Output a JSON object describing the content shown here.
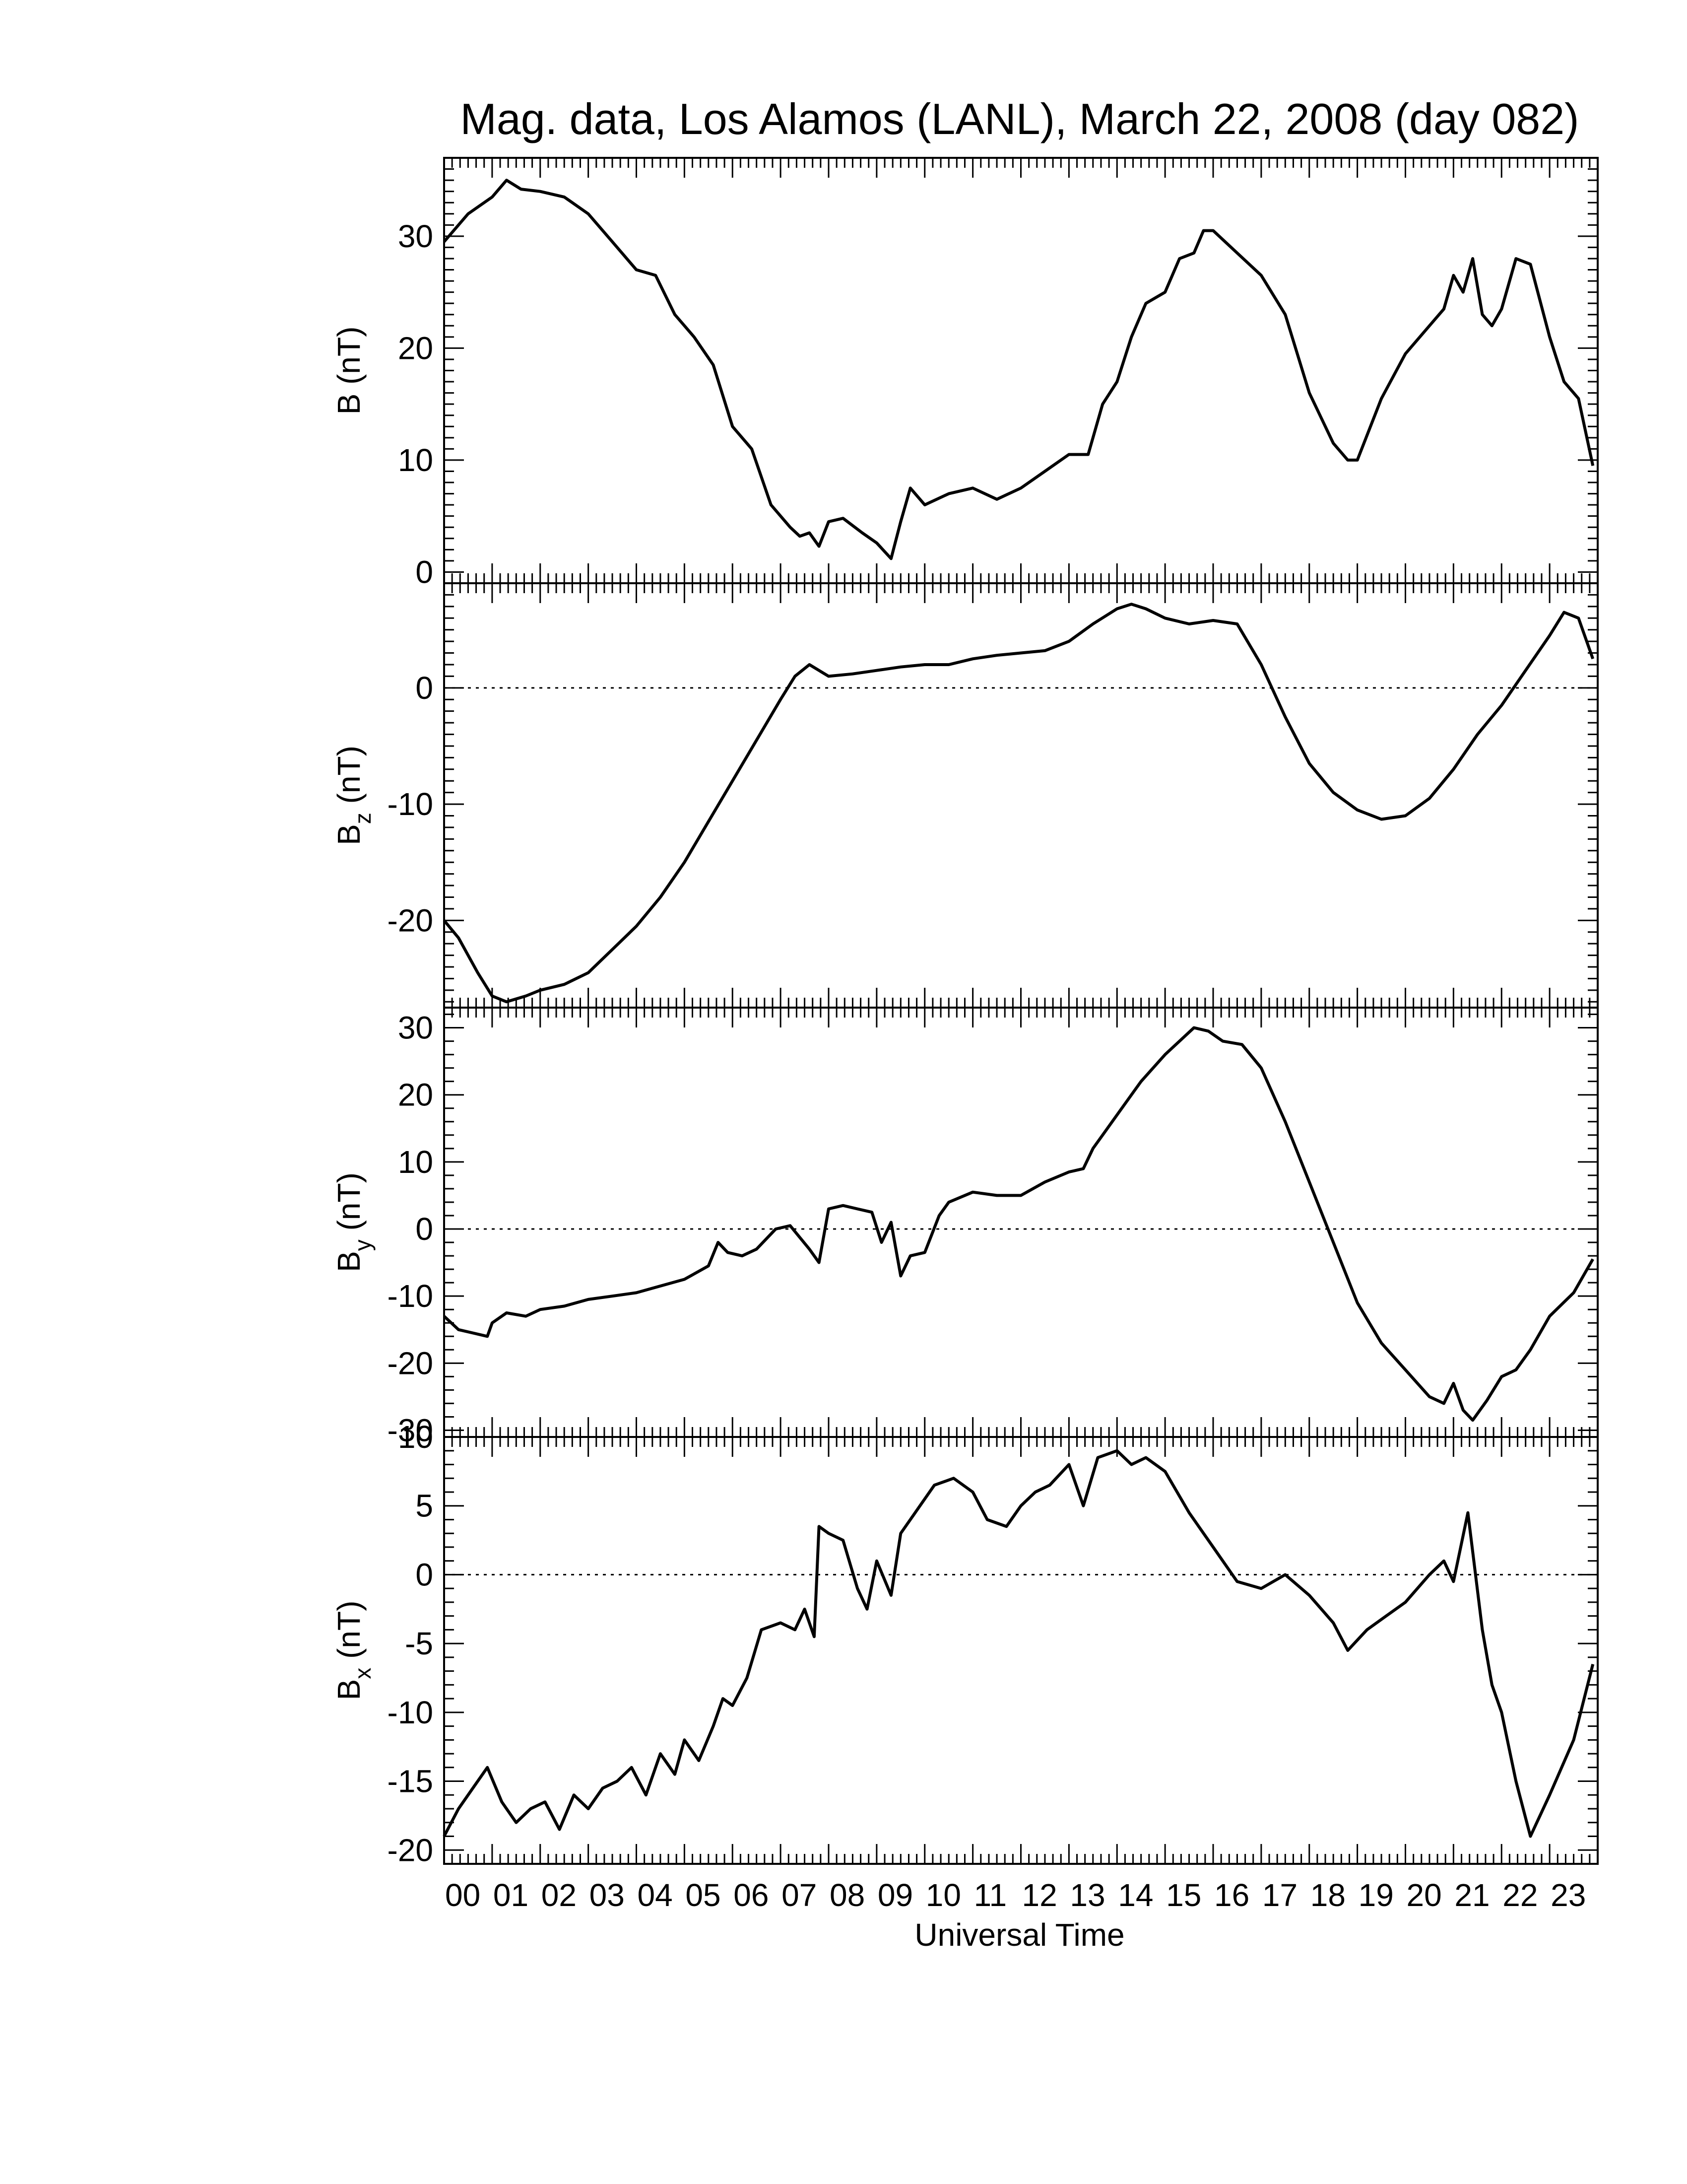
{
  "figure": {
    "title": "Mag. data, Los Alamos (LANL), March 22, 2008 (day 082)",
    "xlabel": "Universal Time",
    "line_color": "#000000",
    "zero_line_style": "dotted"
  },
  "chart_data": [
    {
      "type": "line",
      "panel": "B",
      "ylabel": "B (nT)",
      "ylim": [
        -1,
        37
      ],
      "yticks": [
        0,
        10,
        20,
        30
      ],
      "ytick_labels": [
        "0",
        "10",
        "20",
        "30"
      ],
      "zero_line": false,
      "x": [
        0.0,
        0.5,
        1.0,
        1.3,
        1.6,
        2.0,
        2.5,
        3.0,
        3.5,
        4.0,
        4.4,
        4.8,
        5.2,
        5.6,
        6.0,
        6.4,
        6.8,
        7.2,
        7.4,
        7.6,
        7.8,
        8.0,
        8.3,
        8.7,
        9.0,
        9.3,
        9.5,
        9.7,
        10.0,
        10.5,
        11.0,
        11.5,
        12.0,
        12.5,
        13.0,
        13.4,
        13.7,
        14.0,
        14.3,
        14.6,
        15.0,
        15.3,
        15.6,
        15.8,
        16.0,
        16.5,
        17.0,
        17.5,
        18.0,
        18.5,
        18.8,
        19.0,
        19.5,
        20.0,
        20.5,
        20.8,
        21.0,
        21.2,
        21.4,
        21.6,
        21.8,
        22.0,
        22.3,
        22.6,
        23.0,
        23.3,
        23.6,
        23.9
      ],
      "y": [
        29.5,
        32.0,
        33.5,
        35.0,
        34.2,
        34.0,
        33.5,
        32.0,
        29.5,
        27.0,
        26.5,
        23.0,
        21.0,
        18.5,
        13.0,
        11.0,
        6.0,
        4.0,
        3.2,
        3.5,
        2.3,
        4.5,
        4.8,
        3.5,
        2.6,
        1.2,
        4.5,
        7.5,
        6.0,
        7.0,
        7.5,
        6.5,
        7.5,
        9.0,
        10.5,
        10.5,
        15.0,
        17.0,
        21.0,
        24.0,
        25.0,
        28.0,
        28.5,
        30.5,
        30.5,
        28.5,
        26.5,
        23.0,
        16.0,
        11.5,
        10.0,
        10.0,
        15.5,
        19.5,
        22.0,
        23.5,
        26.5,
        25.0,
        28.0,
        23.0,
        22.0,
        23.5,
        28.0,
        27.5,
        21.0,
        17.0,
        15.5,
        9.5
      ]
    },
    {
      "type": "line",
      "panel": "Bz",
      "ylabel": "Bz (nT)",
      "ylabel_main": "B",
      "ylabel_sub": "z",
      "ylabel_unit": "(nT)",
      "ylim": [
        -27.5,
        9
      ],
      "yticks": [
        -20,
        -10,
        0
      ],
      "ytick_labels": [
        "-20",
        "-10",
        "0"
      ],
      "zero_line": true,
      "x": [
        0.0,
        0.3,
        0.7,
        1.0,
        1.3,
        1.7,
        2.0,
        2.5,
        3.0,
        3.5,
        4.0,
        4.5,
        5.0,
        5.5,
        6.0,
        6.5,
        7.0,
        7.3,
        7.6,
        7.8,
        8.0,
        8.5,
        9.0,
        9.5,
        10.0,
        10.5,
        11.0,
        11.5,
        12.0,
        12.5,
        13.0,
        13.5,
        14.0,
        14.3,
        14.6,
        15.0,
        15.5,
        16.0,
        16.5,
        17.0,
        17.5,
        18.0,
        18.5,
        19.0,
        19.5,
        20.0,
        20.5,
        21.0,
        21.5,
        22.0,
        22.5,
        23.0,
        23.3,
        23.6,
        23.9
      ],
      "y": [
        -20.0,
        -21.5,
        -24.5,
        -26.5,
        -27.0,
        -26.5,
        -26.0,
        -25.5,
        -24.5,
        -22.5,
        -20.5,
        -18.0,
        -15.0,
        -11.5,
        -8.0,
        -4.5,
        -1.0,
        1.0,
        2.0,
        1.5,
        1.0,
        1.2,
        1.5,
        1.8,
        2.0,
        2.0,
        2.5,
        2.8,
        3.0,
        3.2,
        4.0,
        5.5,
        6.8,
        7.2,
        6.8,
        6.0,
        5.5,
        5.8,
        5.5,
        2.0,
        -2.5,
        -6.5,
        -9.0,
        -10.5,
        -11.3,
        -11.0,
        -9.5,
        -7.0,
        -4.0,
        -1.5,
        1.5,
        4.5,
        6.5,
        6.0,
        2.5
      ]
    },
    {
      "type": "line",
      "panel": "By",
      "ylabel": "By (nT)",
      "ylabel_main": "B",
      "ylabel_sub": "y",
      "ylabel_unit": "(nT)",
      "ylim": [
        -31,
        33
      ],
      "yticks": [
        -30,
        -20,
        -10,
        0,
        10,
        20,
        30
      ],
      "ytick_labels": [
        "-30",
        "-20",
        "-10",
        "0",
        "10",
        "20",
        "30"
      ],
      "zero_line": true,
      "x": [
        0.0,
        0.3,
        0.6,
        0.9,
        1.0,
        1.3,
        1.7,
        2.0,
        2.5,
        3.0,
        3.5,
        4.0,
        4.5,
        5.0,
        5.5,
        5.7,
        5.9,
        6.2,
        6.5,
        6.9,
        7.2,
        7.6,
        7.8,
        8.0,
        8.3,
        8.6,
        8.9,
        9.1,
        9.3,
        9.5,
        9.7,
        10.0,
        10.3,
        10.5,
        11.0,
        11.5,
        12.0,
        12.5,
        13.0,
        13.3,
        13.5,
        13.8,
        14.1,
        14.5,
        15.0,
        15.3,
        15.6,
        15.9,
        16.2,
        16.6,
        17.0,
        17.5,
        18.0,
        18.5,
        19.0,
        19.5,
        20.0,
        20.5,
        20.8,
        21.0,
        21.2,
        21.4,
        21.7,
        22.0,
        22.3,
        22.6,
        23.0,
        23.5,
        23.9
      ],
      "y": [
        -13.0,
        -15.0,
        -15.5,
        -16.0,
        -14.0,
        -12.5,
        -13.0,
        -12.0,
        -11.5,
        -10.5,
        -10.0,
        -9.5,
        -8.5,
        -7.5,
        -5.5,
        -2.0,
        -3.5,
        -4.0,
        -3.0,
        0.0,
        0.5,
        -3.0,
        -5.0,
        3.0,
        3.5,
        3.0,
        2.5,
        -2.0,
        1.0,
        -7.0,
        -4.0,
        -3.5,
        2.0,
        4.0,
        5.5,
        5.0,
        5.0,
        7.0,
        8.5,
        9.0,
        12.0,
        15.0,
        18.0,
        22.0,
        26.0,
        28.0,
        30.0,
        29.5,
        28.0,
        27.5,
        24.0,
        16.0,
        7.0,
        -2.0,
        -11.0,
        -17.0,
        -21.0,
        -25.0,
        -26.0,
        -23.0,
        -27.0,
        -28.5,
        -25.5,
        -22.0,
        -21.0,
        -18.0,
        -13.0,
        -9.5,
        -4.5
      ]
    },
    {
      "type": "line",
      "panel": "Bx",
      "ylabel": "Bx (nT)",
      "ylabel_main": "B",
      "ylabel_sub": "x",
      "ylabel_unit": "(nT)",
      "ylim": [
        -21,
        10
      ],
      "yticks": [
        -20,
        -15,
        -10,
        -5,
        0,
        5,
        10
      ],
      "ytick_labels": [
        "-20",
        "-15",
        "-10",
        "-5",
        "0",
        "5",
        "10"
      ],
      "zero_line": true,
      "x": [
        0.0,
        0.3,
        0.6,
        0.9,
        1.2,
        1.5,
        1.8,
        2.1,
        2.4,
        2.7,
        3.0,
        3.3,
        3.6,
        3.9,
        4.2,
        4.5,
        4.8,
        5.0,
        5.3,
        5.6,
        5.8,
        6.0,
        6.3,
        6.6,
        7.0,
        7.3,
        7.5,
        7.7,
        7.8,
        8.0,
        8.3,
        8.6,
        8.8,
        9.0,
        9.3,
        9.5,
        9.8,
        10.2,
        10.6,
        11.0,
        11.3,
        11.7,
        12.0,
        12.3,
        12.6,
        13.0,
        13.3,
        13.6,
        14.0,
        14.3,
        14.6,
        15.0,
        15.5,
        16.0,
        16.5,
        17.0,
        17.5,
        18.0,
        18.5,
        18.8,
        19.2,
        19.6,
        20.0,
        20.5,
        20.8,
        21.0,
        21.3,
        21.6,
        21.8,
        22.0,
        22.3,
        22.6,
        23.0,
        23.5,
        23.9
      ],
      "y": [
        -19.0,
        -17.0,
        -15.5,
        -14.0,
        -16.5,
        -18.0,
        -17.0,
        -16.5,
        -18.5,
        -16.0,
        -17.0,
        -15.5,
        -15.0,
        -14.0,
        -16.0,
        -13.0,
        -14.5,
        -12.0,
        -13.5,
        -11.0,
        -9.0,
        -9.5,
        -7.5,
        -4.0,
        -3.5,
        -4.0,
        -2.5,
        -4.5,
        3.5,
        3.0,
        2.5,
        -1.0,
        -2.5,
        1.0,
        -1.5,
        3.0,
        4.5,
        6.5,
        7.0,
        6.0,
        4.0,
        3.5,
        5.0,
        6.0,
        6.5,
        8.0,
        5.0,
        8.5,
        9.0,
        8.0,
        8.5,
        7.5,
        4.5,
        2.0,
        -0.5,
        -1.0,
        0.0,
        -1.5,
        -3.5,
        -5.5,
        -4.0,
        -3.0,
        -2.0,
        0.0,
        1.0,
        -0.5,
        4.5,
        -4.0,
        -8.0,
        -10.0,
        -15.0,
        -19.0,
        -16.0,
        -12.0,
        -6.5
      ]
    }
  ],
  "x_axis": {
    "xlim": [
      0,
      24
    ],
    "ticks": [
      0,
      1,
      2,
      3,
      4,
      5,
      6,
      7,
      8,
      9,
      10,
      11,
      12,
      13,
      14,
      15,
      16,
      17,
      18,
      19,
      20,
      21,
      22,
      23
    ],
    "tick_labels": [
      "00",
      "01",
      "02",
      "03",
      "04",
      "05",
      "06",
      "07",
      "08",
      "09",
      "10",
      "11",
      "12",
      "13",
      "14",
      "15",
      "16",
      "17",
      "18",
      "19",
      "20",
      "21",
      "22",
      "23"
    ]
  }
}
